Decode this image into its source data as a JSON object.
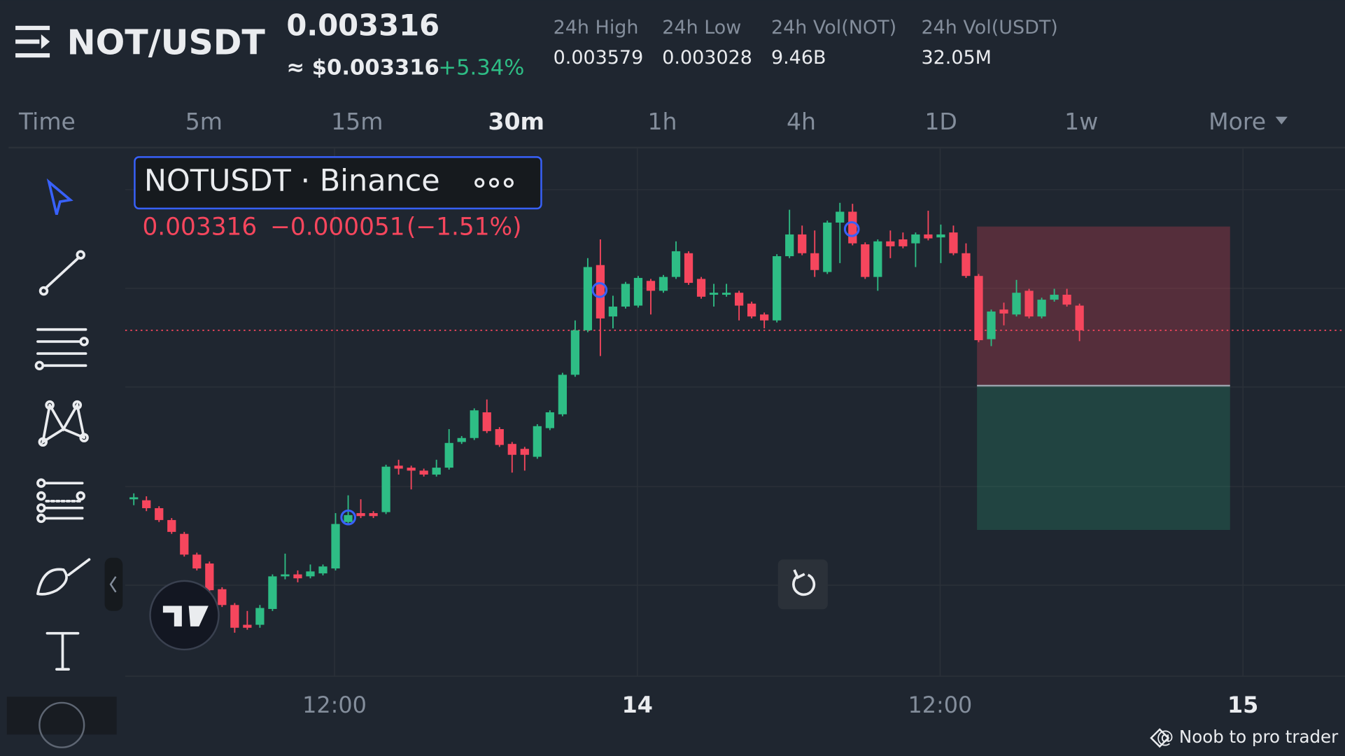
{
  "header": {
    "symbol": "NOT/USDT",
    "price": "0.003316",
    "price_usd": "≈ $0.003316",
    "change": "+5.34%",
    "stats": [
      {
        "label": "24h High",
        "value": "0.003579"
      },
      {
        "label": "24h Low",
        "value": "0.003028"
      },
      {
        "label": "24h Vol(NOT)",
        "value": "9.46B"
      },
      {
        "label": "24h Vol(USDT)",
        "value": "32.05M"
      }
    ]
  },
  "timeframes": [
    "Time",
    "5m",
    "15m",
    "30m",
    "1h",
    "4h",
    "1D",
    "1w",
    "More"
  ],
  "selected_timeframe": "30m",
  "watermark": "@ Noob to pro trader",
  "chart_data": {
    "type": "candlestick",
    "title": "NOTUSDT · Binance",
    "last": "0.003316",
    "change": "−0.000051",
    "change_pct": "(−1.51%)",
    "x_labels": [
      "12:00",
      "14",
      "12:00",
      "15"
    ],
    "up_color": "#2ebd85",
    "down_color": "#f6465d",
    "ylim": [
      0.002966,
      0.0035
    ],
    "last_price": 0.003316,
    "position": {
      "stop": 0.003421,
      "entry": 0.00326,
      "target": 0.003114
    },
    "open": [
      0.003145,
      0.003144,
      0.003136,
      0.003124,
      0.00311,
      0.003089,
      0.00308,
      0.003054,
      0.003038,
      0.003018,
      0.003018,
      0.003034,
      0.003067,
      0.003069,
      0.003067,
      0.00307,
      0.003075,
      0.003122,
      0.003131,
      0.003131,
      0.003132,
      0.003179,
      0.003177,
      0.003174,
      0.00317,
      0.003177,
      0.003203,
      0.003207,
      0.003233,
      0.003216,
      0.003201,
      0.003196,
      0.003188,
      0.003217,
      0.003231,
      0.003271,
      0.003316,
      0.003382,
      0.00333,
      0.00334,
      0.003341,
      0.003366,
      0.003356,
      0.00337,
      0.003394,
      0.003368,
      0.003352,
      0.003352,
      0.003354,
      0.003343,
      0.003332,
      0.003326,
      0.003391,
      0.003413,
      0.003394,
      0.003375,
      0.003425,
      0.003436,
      0.003403,
      0.00337,
      0.003406,
      0.003408,
      0.003404,
      0.003413,
      0.00341,
      0.003415,
      0.003394,
      0.003371,
      0.003307,
      0.003337,
      0.003332,
      0.003356,
      0.00333,
      0.003347,
      0.003352,
      0.003341
    ],
    "high": [
      0.003151,
      0.003148,
      0.003138,
      0.003126,
      0.003112,
      0.003091,
      0.003082,
      0.003056,
      0.00304,
      0.003032,
      0.003038,
      0.003069,
      0.00309,
      0.003073,
      0.003079,
      0.003079,
      0.003131,
      0.003149,
      0.003145,
      0.003133,
      0.00318,
      0.003185,
      0.003179,
      0.003176,
      0.003185,
      0.003216,
      0.003209,
      0.003237,
      0.003246,
      0.003218,
      0.003203,
      0.003198,
      0.003221,
      0.003235,
      0.003273,
      0.003326,
      0.003389,
      0.003408,
      0.003351,
      0.003365,
      0.003371,
      0.003368,
      0.003372,
      0.003406,
      0.003396,
      0.00337,
      0.003363,
      0.003363,
      0.003356,
      0.003345,
      0.003334,
      0.003393,
      0.003438,
      0.003422,
      0.003417,
      0.003427,
      0.003445,
      0.003444,
      0.003405,
      0.003408,
      0.003417,
      0.003415,
      0.003415,
      0.003437,
      0.003423,
      0.003422,
      0.003404,
      0.003373,
      0.003337,
      0.003344,
      0.003367,
      0.003358,
      0.003349,
      0.003358,
      0.003358,
      0.003343
    ],
    "low": [
      0.003139,
      0.003133,
      0.003122,
      0.00311,
      0.003087,
      0.003073,
      0.003038,
      0.003036,
      0.00301,
      0.003013,
      0.003015,
      0.003032,
      0.003064,
      0.003061,
      0.003065,
      0.003068,
      0.003073,
      0.00312,
      0.003126,
      0.003126,
      0.00313,
      0.00317,
      0.003155,
      0.003168,
      0.003168,
      0.003175,
      0.003201,
      0.003205,
      0.003212,
      0.003198,
      0.003172,
      0.003174,
      0.003186,
      0.003215,
      0.003229,
      0.003269,
      0.003314,
      0.00329,
      0.003318,
      0.003338,
      0.003339,
      0.003332,
      0.003354,
      0.003368,
      0.003362,
      0.003348,
      0.00334,
      0.00335,
      0.003326,
      0.003328,
      0.003318,
      0.003324,
      0.003389,
      0.003392,
      0.00337,
      0.003373,
      0.003384,
      0.003402,
      0.003368,
      0.003356,
      0.003389,
      0.003399,
      0.00338,
      0.003407,
      0.003384,
      0.003392,
      0.003369,
      0.003304,
      0.0033,
      0.003321,
      0.00333,
      0.003328,
      0.003328,
      0.003345,
      0.00334,
      0.003305
    ],
    "close": [
      0.003147,
      0.003136,
      0.003124,
      0.003112,
      0.003089,
      0.003075,
      0.003053,
      0.003038,
      0.003015,
      0.003015,
      0.003035,
      0.003067,
      0.003069,
      0.003065,
      0.003072,
      0.003077,
      0.00312,
      0.003129,
      0.003128,
      0.003128,
      0.003178,
      0.003176,
      0.003174,
      0.00317,
      0.003177,
      0.003202,
      0.003207,
      0.003235,
      0.003214,
      0.0032,
      0.00319,
      0.00319,
      0.003219,
      0.003233,
      0.003271,
      0.003316,
      0.00338,
      0.003328,
      0.00334,
      0.003363,
      0.003369,
      0.003356,
      0.00337,
      0.003396,
      0.003364,
      0.00335,
      0.003354,
      0.003354,
      0.003341,
      0.00333,
      0.003326,
      0.003391,
      0.003413,
      0.003394,
      0.003377,
      0.003425,
      0.003436,
      0.003404,
      0.00337,
      0.003406,
      0.003401,
      0.003401,
      0.003413,
      0.003409,
      0.003413,
      0.003394,
      0.003371,
      0.003306,
      0.003335,
      0.003333,
      0.003354,
      0.00333,
      0.003347,
      0.003352,
      0.003342,
      0.003316
    ]
  }
}
